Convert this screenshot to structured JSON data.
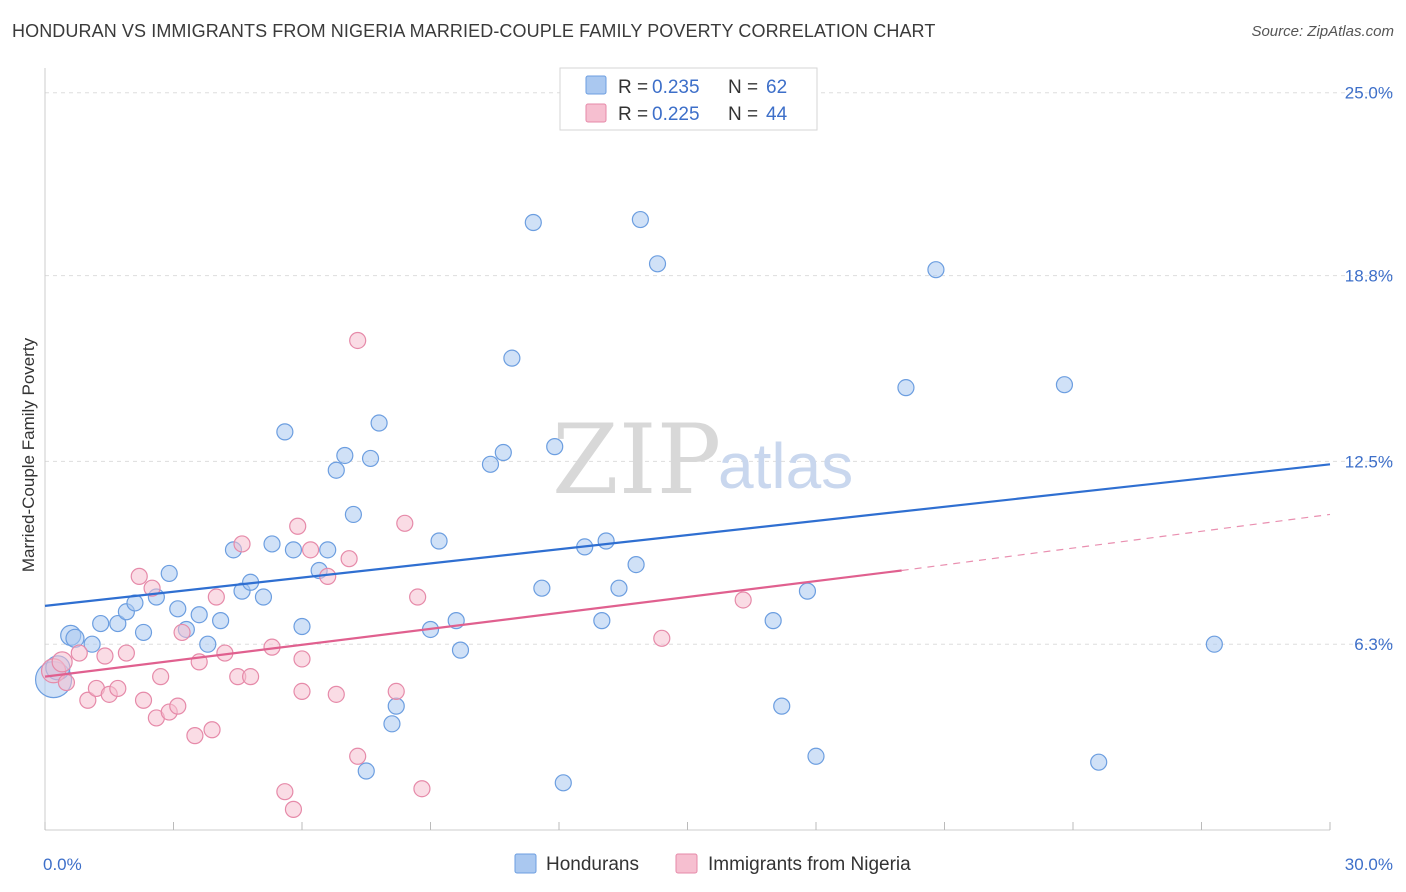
{
  "title": "HONDURAN VS IMMIGRANTS FROM NIGERIA MARRIED-COUPLE FAMILY POVERTY CORRELATION CHART",
  "source": "Source: ZipAtlas.com",
  "colors": {
    "blue_fill": "#aac8f0",
    "blue_stroke": "#6c9ee0",
    "blue_line": "#2f6fd1",
    "pink_fill": "#f6bfd0",
    "pink_stroke": "#e68aa9",
    "pink_line": "#e0608f",
    "axis_text": "#3d6fc9",
    "grid": "#dddddd"
  },
  "watermark": {
    "zip": "ZIP",
    "atlas": "atlas"
  },
  "legend": {
    "rows": [
      {
        "r_label": "R = ",
        "r_value": "0.235",
        "n_label": "N = ",
        "n_value": "62"
      },
      {
        "r_label": "R = ",
        "r_value": "0.225",
        "n_label": "N = ",
        "n_value": "44"
      }
    ]
  },
  "chart_data": {
    "type": "scatter",
    "title": "HONDURAN VS IMMIGRANTS FROM NIGERIA MARRIED-COUPLE FAMILY POVERTY CORRELATION CHART",
    "xlabel": "",
    "ylabel": "Married-Couple Family Poverty",
    "xlim": [
      0,
      30
    ],
    "ylim": [
      0,
      25.5
    ],
    "x_tick_labels": [
      "0.0%",
      "30.0%"
    ],
    "y_ticks": [
      6.3,
      12.5,
      18.8,
      25.0
    ],
    "y_tick_labels": [
      "6.3%",
      "12.5%",
      "18.8%",
      "25.0%"
    ],
    "grid": true,
    "legend_position": "top-center",
    "series": [
      {
        "name": "Hondurans",
        "color": "#6c9ee0",
        "r": 0.235,
        "n": 62,
        "trend": {
          "x0": 0,
          "y0": 7.6,
          "x1": 30,
          "y1": 12.4,
          "dash_from": null
        },
        "points": [
          [
            0.2,
            5.1,
            18
          ],
          [
            0.3,
            5.5,
            12
          ],
          [
            0.6,
            6.6,
            10
          ],
          [
            0.7,
            6.5,
            9
          ],
          [
            1.1,
            6.3,
            8
          ],
          [
            1.3,
            7.0,
            8
          ],
          [
            1.7,
            7.0,
            8
          ],
          [
            1.9,
            7.4,
            8
          ],
          [
            2.1,
            7.7,
            8
          ],
          [
            2.3,
            6.7,
            8
          ],
          [
            2.6,
            7.9,
            8
          ],
          [
            2.9,
            8.7,
            8
          ],
          [
            3.1,
            7.5,
            8
          ],
          [
            3.3,
            6.8,
            8
          ],
          [
            3.6,
            7.3,
            8
          ],
          [
            3.8,
            6.3,
            8
          ],
          [
            4.1,
            7.1,
            8
          ],
          [
            4.4,
            9.5,
            8
          ],
          [
            4.6,
            8.1,
            8
          ],
          [
            4.8,
            8.4,
            8
          ],
          [
            5.1,
            7.9,
            8
          ],
          [
            5.3,
            9.7,
            8
          ],
          [
            5.6,
            13.5,
            8
          ],
          [
            5.8,
            9.5,
            8
          ],
          [
            6.0,
            6.9,
            8
          ],
          [
            6.4,
            8.8,
            8
          ],
          [
            6.6,
            9.5,
            8
          ],
          [
            6.8,
            12.2,
            8
          ],
          [
            7.0,
            12.7,
            8
          ],
          [
            7.2,
            10.7,
            8
          ],
          [
            7.5,
            2.0,
            8
          ],
          [
            7.6,
            12.6,
            8
          ],
          [
            7.8,
            13.8,
            8
          ],
          [
            8.1,
            3.6,
            8
          ],
          [
            8.2,
            4.2,
            8
          ],
          [
            9.0,
            6.8,
            8
          ],
          [
            9.2,
            9.8,
            8
          ],
          [
            9.6,
            7.1,
            8
          ],
          [
            9.7,
            6.1,
            8
          ],
          [
            10.4,
            12.4,
            8
          ],
          [
            10.7,
            12.8,
            8
          ],
          [
            10.9,
            16.0,
            8
          ],
          [
            11.4,
            20.6,
            8
          ],
          [
            11.6,
            8.2,
            8
          ],
          [
            11.9,
            13.0,
            8
          ],
          [
            12.1,
            1.6,
            8
          ],
          [
            12.6,
            9.6,
            8
          ],
          [
            13.0,
            7.1,
            8
          ],
          [
            13.1,
            9.8,
            8
          ],
          [
            13.4,
            8.2,
            8
          ],
          [
            13.8,
            9.0,
            8
          ],
          [
            13.9,
            20.7,
            8
          ],
          [
            14.3,
            19.2,
            8
          ],
          [
            17.0,
            7.1,
            8
          ],
          [
            17.2,
            4.2,
            8
          ],
          [
            17.8,
            8.1,
            8
          ],
          [
            18.0,
            2.5,
            8
          ],
          [
            20.1,
            15.0,
            8
          ],
          [
            20.8,
            19.0,
            8
          ],
          [
            23.8,
            15.1,
            8
          ],
          [
            24.6,
            2.3,
            8
          ],
          [
            27.3,
            6.3,
            8
          ]
        ]
      },
      {
        "name": "Immigrants from Nigeria",
        "color": "#e68aa9",
        "r": 0.225,
        "n": 44,
        "trend": {
          "x0": 0,
          "y0": 5.2,
          "x1": 20,
          "y1": 8.8,
          "dash_to_x": 30,
          "dash_to_y": 10.7
        },
        "points": [
          [
            0.2,
            5.4,
            12
          ],
          [
            0.4,
            5.7,
            10
          ],
          [
            0.5,
            5.0,
            8
          ],
          [
            0.8,
            6.0,
            8
          ],
          [
            1.0,
            4.4,
            8
          ],
          [
            1.2,
            4.8,
            8
          ],
          [
            1.4,
            5.9,
            8
          ],
          [
            1.5,
            4.6,
            8
          ],
          [
            1.7,
            4.8,
            8
          ],
          [
            1.9,
            6.0,
            8
          ],
          [
            2.2,
            8.6,
            8
          ],
          [
            2.3,
            4.4,
            8
          ],
          [
            2.5,
            8.2,
            8
          ],
          [
            2.6,
            3.8,
            8
          ],
          [
            2.7,
            5.2,
            8
          ],
          [
            2.9,
            4.0,
            8
          ],
          [
            3.1,
            4.2,
            8
          ],
          [
            3.2,
            6.7,
            8
          ],
          [
            3.5,
            3.2,
            8
          ],
          [
            3.6,
            5.7,
            8
          ],
          [
            3.9,
            3.4,
            8
          ],
          [
            4.0,
            7.9,
            8
          ],
          [
            4.2,
            6.0,
            8
          ],
          [
            4.5,
            5.2,
            8
          ],
          [
            4.6,
            9.7,
            8
          ],
          [
            4.8,
            5.2,
            8
          ],
          [
            5.3,
            6.2,
            8
          ],
          [
            5.6,
            1.3,
            8
          ],
          [
            5.8,
            0.7,
            8
          ],
          [
            5.9,
            10.3,
            8
          ],
          [
            6.0,
            4.7,
            8
          ],
          [
            6.2,
            9.5,
            8
          ],
          [
            6.6,
            8.6,
            8
          ],
          [
            7.1,
            9.2,
            8
          ],
          [
            7.3,
            16.6,
            8
          ],
          [
            6.8,
            4.6,
            8
          ],
          [
            7.3,
            2.5,
            8
          ],
          [
            8.2,
            4.7,
            8
          ],
          [
            8.4,
            10.4,
            8
          ],
          [
            8.7,
            7.9,
            8
          ],
          [
            8.8,
            1.4,
            8
          ],
          [
            14.4,
            6.5,
            8
          ],
          [
            16.3,
            7.8,
            8
          ],
          [
            6.0,
            5.8,
            8
          ]
        ]
      }
    ]
  },
  "bottom_legend": [
    {
      "label": "Hondurans"
    },
    {
      "label": "Immigrants from Nigeria"
    }
  ]
}
